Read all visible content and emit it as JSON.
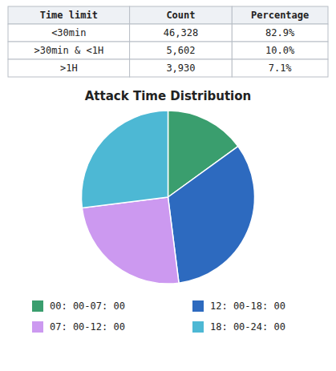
{
  "chart_data": {
    "type": "pie",
    "title": "Attack Time Distribution",
    "categories": [
      "00: 00-07: 00",
      "12: 00-18: 00",
      "07: 00-12: 00",
      "18: 00-24: 00"
    ],
    "values": [
      15,
      33,
      25,
      27
    ],
    "colors": [
      "#3a9e6e",
      "#2d6abf",
      "#cc99f0",
      "#4db8d4"
    ],
    "legend": "bottom",
    "table": {
      "columns": [
        "Time limit",
        "Count",
        "Percentage"
      ],
      "rows": [
        [
          "<30min",
          "46,328",
          "82.9%"
        ],
        [
          ">30min & <1H",
          "5,602",
          "10.0%"
        ],
        [
          ">1H",
          "3,930",
          "7.1%"
        ]
      ]
    }
  }
}
